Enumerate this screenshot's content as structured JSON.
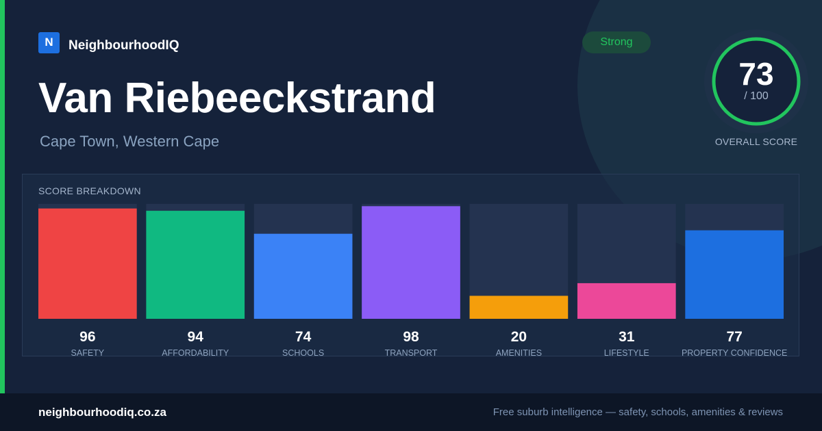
{
  "brand": {
    "logo_letter": "N",
    "name": "NeighbourhoodIQ"
  },
  "suburb": {
    "name": "Van Riebeeckstrand",
    "location": "Cape Town, Western Cape"
  },
  "rating_badge": "Strong",
  "overall": {
    "value": "73",
    "max_label": "/ 100",
    "label": "OVERALL SCORE",
    "fraction": 0.73
  },
  "colors": {
    "accent": "#22c55e",
    "safety": "#ef4444",
    "affordability": "#10b981",
    "schools": "#3b82f6",
    "transport": "#8b5cf6",
    "amenities": "#f59e0b",
    "lifestyle": "#ec4899",
    "property_confidence": "#1d6fe0"
  },
  "chart_data": {
    "type": "bar",
    "title": "SCORE BREAKDOWN",
    "ylim": [
      0,
      100
    ],
    "categories": [
      "SAFETY",
      "AFFORDABILITY",
      "SCHOOLS",
      "TRANSPORT",
      "AMENITIES",
      "LIFESTYLE",
      "PROPERTY CONFIDENCE"
    ],
    "values": [
      96,
      94,
      74,
      98,
      20,
      31,
      77
    ],
    "value_labels": [
      "96",
      "94",
      "74",
      "98",
      "20",
      "31",
      "77"
    ],
    "bar_colors": [
      "#ef4444",
      "#10b981",
      "#3b82f6",
      "#8b5cf6",
      "#f59e0b",
      "#ec4899",
      "#1d6fe0"
    ],
    "track_color": "#243350",
    "grid": false
  },
  "footer": {
    "url": "neighbourhoodiq.co.za",
    "tagline": "Free suburb intelligence — safety, schools, amenities & reviews"
  }
}
